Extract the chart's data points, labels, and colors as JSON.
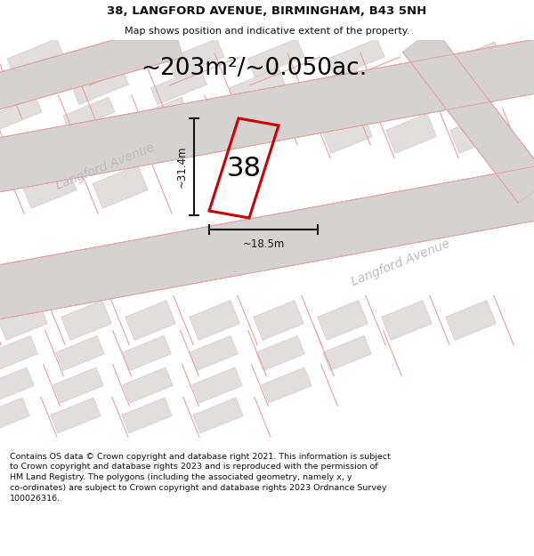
{
  "title_line1": "38, LANGFORD AVENUE, BIRMINGHAM, B43 5NH",
  "title_line2": "Map shows position and indicative extent of the property.",
  "area_text": "~203m²/~0.050ac.",
  "width_label": "~18.5m",
  "height_label": "~31.4m",
  "property_number": "38",
  "langford_label1": "Langford Avenue",
  "langford_label2": "Langford Avenue",
  "footer_text": "Contains OS data © Crown copyright and database right 2021. This information is subject to Crown copyright and database rights 2023 and is reproduced with the permission of HM Land Registry. The polygons (including the associated geometry, namely x, y co-ordinates) are subject to Crown copyright and database rights 2023 Ordnance Survey 100026316.",
  "map_bg": "#eeecec",
  "road_fill": "#d6d2d2",
  "road_edge": "#c8c4c4",
  "block_fill": "#e2dede",
  "block_edge": "#d4d0d0",
  "pink_line": "#e8a0a0",
  "plot_color": "#cc0000",
  "dim_color": "#111111",
  "label_color": "#bbbbbb",
  "title_color": "#111111",
  "footer_color": "#111111"
}
